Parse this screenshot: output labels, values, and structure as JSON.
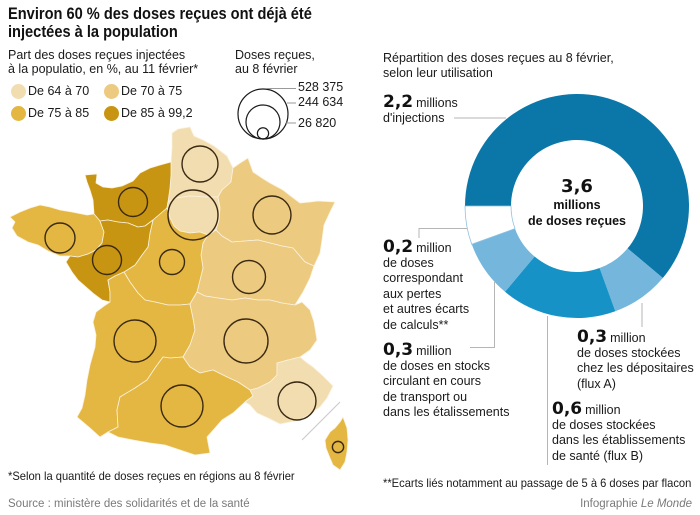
{
  "header": {
    "title_lines": [
      "Environ 60 % des doses reçues ont déjà été",
      "injectées à la population"
    ]
  },
  "chart_data": [
    {
      "type": "heatmap",
      "title_lines": [
        "Part des doses reçues injectées",
        "à la populatio, en %, au 11 février*"
      ],
      "color_legend": [
        {
          "label": "De 64 à 70",
          "range": [
            64,
            70
          ],
          "color": "#f2ddb1"
        },
        {
          "label": "De 70 à 75",
          "range": [
            70,
            75
          ],
          "color": "#ecca80"
        },
        {
          "label": "De 75 à 85",
          "range": [
            75,
            85
          ],
          "color": "#e4b743"
        },
        {
          "label": "De 85 à 99,2",
          "range": [
            85,
            99.2
          ],
          "color": "#c89512"
        }
      ],
      "size_legend": {
        "title_lines": [
          "Doses reçues,",
          "au 8 février"
        ],
        "entries": [
          {
            "label": "528 375",
            "value": 528375
          },
          {
            "label": "244 634",
            "value": 244634
          },
          {
            "label": "26 820",
            "value": 26820
          }
        ]
      },
      "regions": [
        {
          "id": "hauts-de-france",
          "color_bin": 0,
          "doses_recues_approx": 274000
        },
        {
          "id": "ile-de-france",
          "color_bin": 0,
          "doses_recues_approx": 528375
        },
        {
          "id": "normandie",
          "color_bin": 3,
          "doses_recues_approx": 178000
        },
        {
          "id": "grand-est",
          "color_bin": 1,
          "doses_recues_approx": 305000
        },
        {
          "id": "bretagne",
          "color_bin": 2,
          "doses_recues_approx": 190000
        },
        {
          "id": "pays-de-la-loire",
          "color_bin": 3,
          "doses_recues_approx": 178000
        },
        {
          "id": "centre-val-de-loire",
          "color_bin": 2,
          "doses_recues_approx": 132000
        },
        {
          "id": "bourgogne-franche-comte",
          "color_bin": 1,
          "doses_recues_approx": 230000
        },
        {
          "id": "nouvelle-aquitaine",
          "color_bin": 2,
          "doses_recues_approx": 373000
        },
        {
          "id": "auvergne-rhone-alpes",
          "color_bin": 1,
          "doses_recues_approx": 409000
        },
        {
          "id": "occitanie",
          "color_bin": 2,
          "doses_recues_approx": 373000
        },
        {
          "id": "provence-alpes-cote-d-azur",
          "color_bin": 0,
          "doses_recues_approx": 305000
        },
        {
          "id": "corse",
          "color_bin": 2,
          "doses_recues_approx": 26820
        }
      ],
      "footnote": "*Selon la quantité de doses reçues en régions au 8 février"
    },
    {
      "type": "pie",
      "title_lines": [
        "Répartition des doses reçues au 8 février,",
        "selon leur utilisation"
      ],
      "unit": "millions de doses",
      "total": 3.6,
      "center_label": {
        "value": "3,6",
        "lines": [
          "millions",
          "de doses reçues"
        ]
      },
      "slices": [
        {
          "category": "injections",
          "value": 2.2,
          "color": "#0b77a9",
          "value_label": "2,2",
          "unit_label": "millions",
          "lines": [
            "d'injections"
          ]
        },
        {
          "category": "stock-depositaires-flux-a",
          "value": 0.3,
          "color": "#74b6dc",
          "value_label": "0,3",
          "unit_label": "million",
          "lines": [
            "de doses stockées",
            "chez les dépositaires",
            "(flux A)"
          ]
        },
        {
          "category": "stock-etablissements-flux-b",
          "value": 0.6,
          "color": "#1792c6",
          "value_label": "0,6",
          "unit_label": "million",
          "lines": [
            "de doses stockées",
            "dans les établissements",
            "de santé (flux B)"
          ]
        },
        {
          "category": "stocks-en-transport",
          "value": 0.3,
          "color": "#74b6dc",
          "value_label": "0,3",
          "unit_label": "million",
          "lines": [
            "de doses en stocks",
            "circulant en cours",
            "de transport ou",
            "dans les étalissements"
          ]
        },
        {
          "category": "pertes-ecarts",
          "value": 0.2,
          "color": "#ffffff",
          "value_label": "0,2",
          "unit_label": "million",
          "lines": [
            "de doses",
            "correspondant",
            "aux pertes",
            "et autres écarts",
            "de calculs**"
          ]
        }
      ],
      "footnote": "**Ecarts liés notamment au passage de 5 à 6 doses par flacon"
    }
  ],
  "footer": {
    "source": "Source : ministère des solidarités et de la santé",
    "credit_prefix": "Infographie",
    "credit_brand": "Le Monde"
  }
}
